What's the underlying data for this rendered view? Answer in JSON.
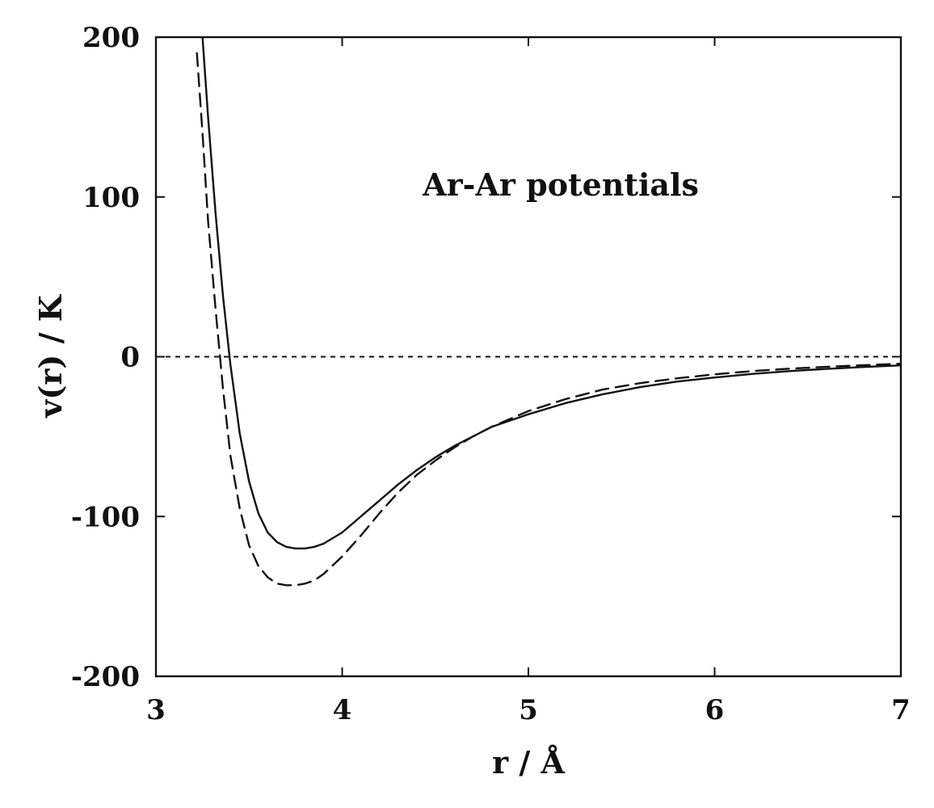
{
  "chart_data": {
    "type": "line",
    "title": "",
    "xlabel": "r / Å",
    "ylabel": "v(r) / K",
    "xlim": [
      3,
      7
    ],
    "ylim": [
      -200,
      200
    ],
    "x_ticks": [
      3,
      4,
      5,
      6,
      7
    ],
    "x_tick_labels": [
      "3",
      "4",
      "5",
      "6",
      "7"
    ],
    "y_ticks": [
      -200,
      -100,
      0,
      100,
      200
    ],
    "y_tick_labels": [
      "-200",
      "-100",
      "0",
      "100",
      "200"
    ],
    "grid": false,
    "legend": "none",
    "annotations": [
      {
        "text": "Ar-Ar potentials",
        "x": 5.4,
        "y": 108
      }
    ],
    "reference_lines": [
      {
        "y": 0,
        "style": "dotted"
      }
    ],
    "series": [
      {
        "style": "solid",
        "color": "#111111",
        "x": [
          3.25,
          3.28,
          3.32,
          3.36,
          3.4,
          3.45,
          3.5,
          3.55,
          3.6,
          3.65,
          3.7,
          3.75,
          3.8,
          3.85,
          3.9,
          4.0,
          4.1,
          4.2,
          4.3,
          4.4,
          4.5,
          4.6,
          4.7,
          4.8,
          5.0,
          5.2,
          5.4,
          5.6,
          5.8,
          6.0,
          6.2,
          6.4,
          6.6,
          6.8,
          7.0
        ],
        "y": [
          200,
          150,
          90,
          38,
          -5,
          -48,
          -78,
          -98,
          -110,
          -116,
          -119,
          -120,
          -120,
          -119,
          -117,
          -110,
          -100,
          -90,
          -80,
          -71,
          -63,
          -56,
          -50,
          -44,
          -36,
          -29,
          -23.5,
          -19,
          -15.5,
          -13,
          -10.8,
          -9,
          -7.6,
          -6.4,
          -5.4
        ]
      },
      {
        "style": "dashed",
        "color": "#111111",
        "x": [
          3.22,
          3.25,
          3.28,
          3.32,
          3.36,
          3.4,
          3.45,
          3.5,
          3.55,
          3.6,
          3.65,
          3.7,
          3.75,
          3.8,
          3.85,
          3.9,
          4.0,
          4.1,
          4.2,
          4.3,
          4.4,
          4.5,
          4.6,
          4.7,
          4.8,
          5.0,
          5.2,
          5.4,
          5.6,
          5.8,
          6.0,
          6.2,
          6.4,
          6.6,
          6.8,
          7.0
        ],
        "y": [
          190,
          140,
          85,
          30,
          -20,
          -62,
          -95,
          -118,
          -131,
          -138,
          -142,
          -143,
          -143,
          -142,
          -140,
          -136,
          -125,
          -112,
          -98,
          -85,
          -74,
          -65,
          -57,
          -50,
          -44,
          -34,
          -26.5,
          -20.5,
          -16.5,
          -13.5,
          -11,
          -9,
          -7.5,
          -6.3,
          -5.3,
          -4.4
        ]
      }
    ]
  }
}
